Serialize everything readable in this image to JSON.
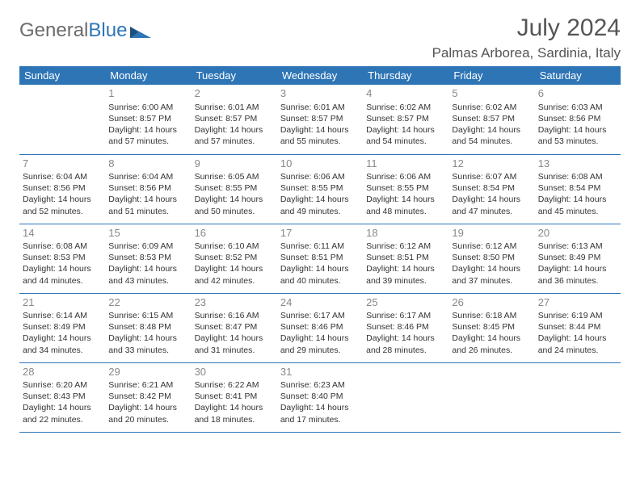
{
  "logo": {
    "text_gray": "General",
    "text_blue": "Blue"
  },
  "title": "July 2024",
  "location": "Palmas Arborea, Sardinia, Italy",
  "colors": {
    "header_bg": "#2e75b6",
    "header_text": "#ffffff",
    "row_border": "#2e75b6",
    "daynum": "#888888",
    "body_text": "#333333",
    "logo_gray": "#6b6b6b",
    "logo_blue": "#2e75b6",
    "title_color": "#555555",
    "background": "#ffffff"
  },
  "weekdays": [
    "Sunday",
    "Monday",
    "Tuesday",
    "Wednesday",
    "Thursday",
    "Friday",
    "Saturday"
  ],
  "start_offset": 1,
  "days": [
    {
      "n": 1,
      "sunrise": "6:00 AM",
      "sunset": "8:57 PM",
      "daylight": "14 hours and 57 minutes."
    },
    {
      "n": 2,
      "sunrise": "6:01 AM",
      "sunset": "8:57 PM",
      "daylight": "14 hours and 57 minutes."
    },
    {
      "n": 3,
      "sunrise": "6:01 AM",
      "sunset": "8:57 PM",
      "daylight": "14 hours and 55 minutes."
    },
    {
      "n": 4,
      "sunrise": "6:02 AM",
      "sunset": "8:57 PM",
      "daylight": "14 hours and 54 minutes."
    },
    {
      "n": 5,
      "sunrise": "6:02 AM",
      "sunset": "8:57 PM",
      "daylight": "14 hours and 54 minutes."
    },
    {
      "n": 6,
      "sunrise": "6:03 AM",
      "sunset": "8:56 PM",
      "daylight": "14 hours and 53 minutes."
    },
    {
      "n": 7,
      "sunrise": "6:04 AM",
      "sunset": "8:56 PM",
      "daylight": "14 hours and 52 minutes."
    },
    {
      "n": 8,
      "sunrise": "6:04 AM",
      "sunset": "8:56 PM",
      "daylight": "14 hours and 51 minutes."
    },
    {
      "n": 9,
      "sunrise": "6:05 AM",
      "sunset": "8:55 PM",
      "daylight": "14 hours and 50 minutes."
    },
    {
      "n": 10,
      "sunrise": "6:06 AM",
      "sunset": "8:55 PM",
      "daylight": "14 hours and 49 minutes."
    },
    {
      "n": 11,
      "sunrise": "6:06 AM",
      "sunset": "8:55 PM",
      "daylight": "14 hours and 48 minutes."
    },
    {
      "n": 12,
      "sunrise": "6:07 AM",
      "sunset": "8:54 PM",
      "daylight": "14 hours and 47 minutes."
    },
    {
      "n": 13,
      "sunrise": "6:08 AM",
      "sunset": "8:54 PM",
      "daylight": "14 hours and 45 minutes."
    },
    {
      "n": 14,
      "sunrise": "6:08 AM",
      "sunset": "8:53 PM",
      "daylight": "14 hours and 44 minutes."
    },
    {
      "n": 15,
      "sunrise": "6:09 AM",
      "sunset": "8:53 PM",
      "daylight": "14 hours and 43 minutes."
    },
    {
      "n": 16,
      "sunrise": "6:10 AM",
      "sunset": "8:52 PM",
      "daylight": "14 hours and 42 minutes."
    },
    {
      "n": 17,
      "sunrise": "6:11 AM",
      "sunset": "8:51 PM",
      "daylight": "14 hours and 40 minutes."
    },
    {
      "n": 18,
      "sunrise": "6:12 AM",
      "sunset": "8:51 PM",
      "daylight": "14 hours and 39 minutes."
    },
    {
      "n": 19,
      "sunrise": "6:12 AM",
      "sunset": "8:50 PM",
      "daylight": "14 hours and 37 minutes."
    },
    {
      "n": 20,
      "sunrise": "6:13 AM",
      "sunset": "8:49 PM",
      "daylight": "14 hours and 36 minutes."
    },
    {
      "n": 21,
      "sunrise": "6:14 AM",
      "sunset": "8:49 PM",
      "daylight": "14 hours and 34 minutes."
    },
    {
      "n": 22,
      "sunrise": "6:15 AM",
      "sunset": "8:48 PM",
      "daylight": "14 hours and 33 minutes."
    },
    {
      "n": 23,
      "sunrise": "6:16 AM",
      "sunset": "8:47 PM",
      "daylight": "14 hours and 31 minutes."
    },
    {
      "n": 24,
      "sunrise": "6:17 AM",
      "sunset": "8:46 PM",
      "daylight": "14 hours and 29 minutes."
    },
    {
      "n": 25,
      "sunrise": "6:17 AM",
      "sunset": "8:46 PM",
      "daylight": "14 hours and 28 minutes."
    },
    {
      "n": 26,
      "sunrise": "6:18 AM",
      "sunset": "8:45 PM",
      "daylight": "14 hours and 26 minutes."
    },
    {
      "n": 27,
      "sunrise": "6:19 AM",
      "sunset": "8:44 PM",
      "daylight": "14 hours and 24 minutes."
    },
    {
      "n": 28,
      "sunrise": "6:20 AM",
      "sunset": "8:43 PM",
      "daylight": "14 hours and 22 minutes."
    },
    {
      "n": 29,
      "sunrise": "6:21 AM",
      "sunset": "8:42 PM",
      "daylight": "14 hours and 20 minutes."
    },
    {
      "n": 30,
      "sunrise": "6:22 AM",
      "sunset": "8:41 PM",
      "daylight": "14 hours and 18 minutes."
    },
    {
      "n": 31,
      "sunrise": "6:23 AM",
      "sunset": "8:40 PM",
      "daylight": "14 hours and 17 minutes."
    }
  ],
  "labels": {
    "sunrise": "Sunrise:",
    "sunset": "Sunset:",
    "daylight": "Daylight:"
  }
}
